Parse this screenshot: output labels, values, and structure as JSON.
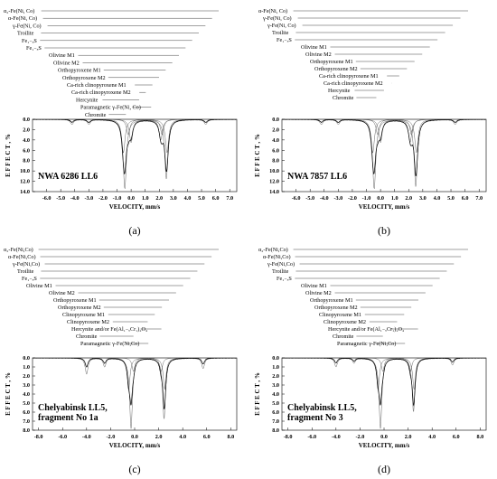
{
  "chart_data": [
    {
      "type": "line",
      "panel_label": "(a)",
      "sample": [
        "NWA 6286 LL6"
      ],
      "xlabel": "VELOCITY, mm/s",
      "ylabel": "E F F E C T , %",
      "xlim": [
        -7.0,
        7.5
      ],
      "ylim": [
        0,
        14
      ],
      "xticks": [
        "-6.0",
        "-5.0",
        "-4.0",
        "-3.0",
        "-2.0",
        "-1.0",
        "0.0",
        "1.0",
        "2.0",
        "3.0",
        "4.0",
        "5.0",
        "6.0",
        "7.0"
      ],
      "yticks": [
        "0.0",
        "2.0",
        "4.0",
        "6.0",
        "8.0",
        "10.0",
        "12.0",
        "14.0"
      ],
      "components": [
        "α₂-Fe(Ni, Co)",
        "α-Fe(Ni, Co)",
        "γ-Fe(Ni, Co)",
        "Troilite",
        "Fe₁₋ₓS",
        "Fe₁₋ₓS",
        "Olivine M1",
        "Olivine M2",
        "Orthopyroxene M1",
        "Orthopyroxene M2",
        "Ca-rich clinopyroxene M1",
        "Ca-rich clinopyroxene M2",
        "Hercynite",
        "Paramagnetic γ-Fe(Ni, Co)",
        "Chromite"
      ],
      "series": [
        {
          "name": "Olivine M1",
          "values": [
            [
              -0.55,
              6.5
            ],
            [
              2.55,
              6.5
            ]
          ]
        },
        {
          "name": "Olivine M2",
          "values": [
            [
              -0.45,
              13.5
            ],
            [
              2.5,
              11.5
            ]
          ]
        },
        {
          "name": "Orthopyroxene M1",
          "values": [
            [
              -0.2,
              3.0
            ],
            [
              2.2,
              3.0
            ]
          ]
        },
        {
          "name": "Orthopyroxene M2",
          "values": [
            [
              0.0,
              4.5
            ],
            [
              2.1,
              4.0
            ]
          ]
        },
        {
          "name": "Troilite",
          "values": [
            [
              -4.2,
              1.0
            ],
            [
              -3.0,
              1.0
            ],
            [
              5.3,
              1.0
            ]
          ]
        }
      ]
    },
    {
      "type": "line",
      "panel_label": "(b)",
      "sample": [
        "NWA 7857 LL6"
      ],
      "xlabel": "VELOCITY, mm/s",
      "ylabel": "E F F E C T , %",
      "xlim": [
        -7.0,
        7.5
      ],
      "ylim": [
        0,
        14
      ],
      "xticks": [
        "-6.0",
        "-5.0",
        "-4.0",
        "-3.0",
        "-2.0",
        "-1.0",
        "0.0",
        "1.0",
        "2.0",
        "3.0",
        "4.0",
        "5.0",
        "6.0",
        "7.0"
      ],
      "yticks": [
        "0.0",
        "2.0",
        "4.0",
        "6.0",
        "8.0",
        "10.0",
        "12.0",
        "14.0"
      ],
      "components": [
        "α-Fe(Ni, Co)",
        "γ-Fe(Ni, Co)",
        "γ-Fe(Ni, Co)",
        "Troilite",
        "Fe₁₋ₓS",
        "Olivine M1",
        "Olivine M2",
        "Orthopyroxene M1",
        "Orthopyroxene M2",
        "Ca-rich clinopyroxene M1",
        "Ca-rich clinopyroxene M2",
        "Hercynite",
        "Chromite"
      ],
      "series": [
        {
          "name": "Olivine M1",
          "values": [
            [
              -0.55,
              6.5
            ],
            [
              2.55,
              6.5
            ]
          ]
        },
        {
          "name": "Olivine M2",
          "values": [
            [
              -0.45,
              13.5
            ],
            [
              2.5,
              13.0
            ]
          ]
        },
        {
          "name": "Orthopyroxene M1",
          "values": [
            [
              -0.2,
              3.0
            ],
            [
              2.2,
              3.0
            ]
          ]
        },
        {
          "name": "Orthopyroxene M2",
          "values": [
            [
              0.0,
              4.5
            ],
            [
              2.1,
              4.5
            ]
          ]
        },
        {
          "name": "Troilite",
          "values": [
            [
              -4.2,
              1.0
            ],
            [
              -3.0,
              1.0
            ],
            [
              5.3,
              1.0
            ]
          ]
        }
      ]
    },
    {
      "type": "line",
      "panel_label": "(c)",
      "sample": [
        "Chelyabinsk LL5,",
        "fragment No 1a"
      ],
      "xlabel": "VELOCITY,  mm/s",
      "ylabel": "E F F E C T , %",
      "xlim": [
        -8.5,
        8.5
      ],
      "ylim": [
        0,
        8
      ],
      "xticks": [
        "-8.0",
        "-6.0",
        "-4.0",
        "-2.0",
        "0.0",
        "2.0",
        "4.0",
        "6.0",
        "8.0"
      ],
      "yticks": [
        "0.0",
        "1.0",
        "2.0",
        "3.0",
        "4.0",
        "5.0",
        "6.0",
        "7.0",
        "8.0"
      ],
      "components": [
        "α₂-Fe(Ni,Co)",
        "α-Fe(Ni,Co)",
        "γ-Fe(Ni,Co)",
        "Troilite",
        "Fe₁₋ₓS",
        "Olivine M1",
        "Olivine M2",
        "Orthopyroxene M1",
        "Orthopyroxene M2",
        "Clinopyroxene M1",
        "Clinopyroxene M2",
        "Hercynite and/or Fe(Al₁₋ₓCr₁)₂O₄",
        "Chromite",
        "Paramagnetic γ-Fe(Ni,Co)"
      ],
      "series": [
        {
          "name": "Olivine M1",
          "values": [
            [
              -0.5,
              3.5
            ],
            [
              2.5,
              3.5
            ]
          ]
        },
        {
          "name": "Olivine M2",
          "values": [
            [
              -0.3,
              7.8
            ],
            [
              2.45,
              6.8
            ]
          ]
        },
        {
          "name": "Orthopyroxene M1",
          "values": [
            [
              -0.1,
              1.5
            ],
            [
              2.2,
              1.5
            ]
          ]
        },
        {
          "name": "Troilite",
          "values": [
            [
              -4.0,
              1.8
            ],
            [
              -2.5,
              1.0
            ],
            [
              5.7,
              1.2
            ]
          ]
        }
      ]
    },
    {
      "type": "line",
      "panel_label": "(d)",
      "sample": [
        "Chelyabinsk LL5,",
        "fragment No 3"
      ],
      "xlabel": "VELOCITY,  mm/s",
      "ylabel": "E F F E C T , %",
      "xlim": [
        -8.5,
        8.5
      ],
      "ylim": [
        0,
        8
      ],
      "xticks": [
        "-8.0",
        "-6.0",
        "-4.0",
        "-2.0",
        "0.0",
        "2.0",
        "4.0",
        "6.0",
        "8.0"
      ],
      "yticks": [
        "0.0",
        "1.0",
        "2.0",
        "3.0",
        "4.0",
        "5.0",
        "6.0",
        "7.0",
        "8.0"
      ],
      "components": [
        "α₂-Fe(Ni,Co)",
        "α-Fe(Ni,Co)",
        "γ-Fe(Ni,Co)",
        "Troilite",
        "Fe₁₋ₓS",
        "Olivine M1",
        "Olivine M2",
        "Orthopyroxene M1",
        "Orthopyroxene M2",
        "Clinopyroxene M1",
        "Clinopyroxene M2",
        "Hercynite and/or Fe(Al₁₋ₓCr₁)₂O₄",
        "Chromite",
        "Paramagnetic γ-Fe(Ni,Co)"
      ],
      "series": [
        {
          "name": "Olivine M1",
          "values": [
            [
              -0.5,
              3.5
            ],
            [
              2.5,
              3.5
            ]
          ]
        },
        {
          "name": "Olivine M2",
          "values": [
            [
              -0.3,
              7.8
            ],
            [
              2.45,
              6.0
            ]
          ]
        },
        {
          "name": "Orthopyroxene M1",
          "values": [
            [
              -0.1,
              1.5
            ],
            [
              2.2,
              1.5
            ]
          ]
        },
        {
          "name": "Troilite",
          "values": [
            [
              -4.0,
              1.0
            ],
            [
              -2.5,
              0.6
            ],
            [
              5.7,
              0.8
            ]
          ]
        }
      ]
    }
  ]
}
